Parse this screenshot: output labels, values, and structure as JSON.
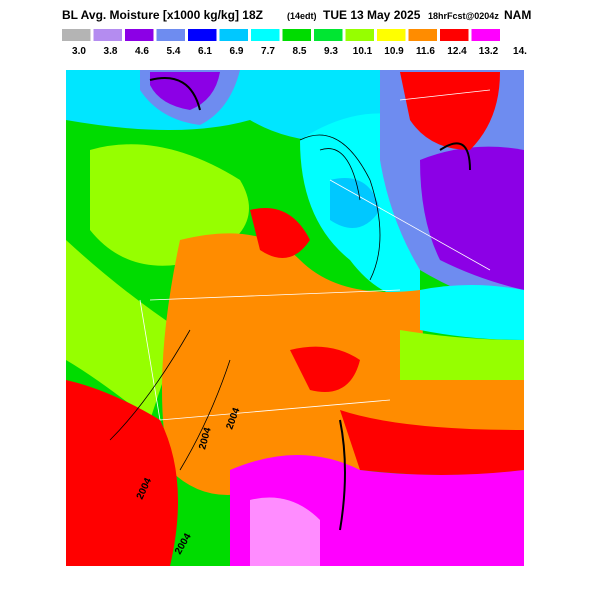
{
  "header": {
    "title": "BL Avg. Moisture [x1000 kg/kg] 18Z",
    "local_time": "(14edt)",
    "date": "TUE 13 May 2025",
    "forecast": "18hrFcst@0204z",
    "model": "NAM"
  },
  "colorbar": {
    "colors": [
      "#b4b4b4",
      "#b48cf0",
      "#8c00e6",
      "#6e8cf0",
      "#0000ff",
      "#00c8ff",
      "#00ffff",
      "#00dc00",
      "#00e632",
      "#96ff00",
      "#ffff00",
      "#ff8c00",
      "#ff0000",
      "#ff00ff",
      "#ff8cff"
    ],
    "labels": [
      "3.0",
      "3.8",
      "4.6",
      "5.4",
      "6.1",
      "6.9",
      "7.7",
      "8.5",
      "9.3",
      "10.1",
      "10.9",
      "11.6",
      "12.4",
      "13.2",
      "14."
    ]
  },
  "contour_labels": [
    "2004",
    "2004",
    "2004",
    "2004"
  ]
}
